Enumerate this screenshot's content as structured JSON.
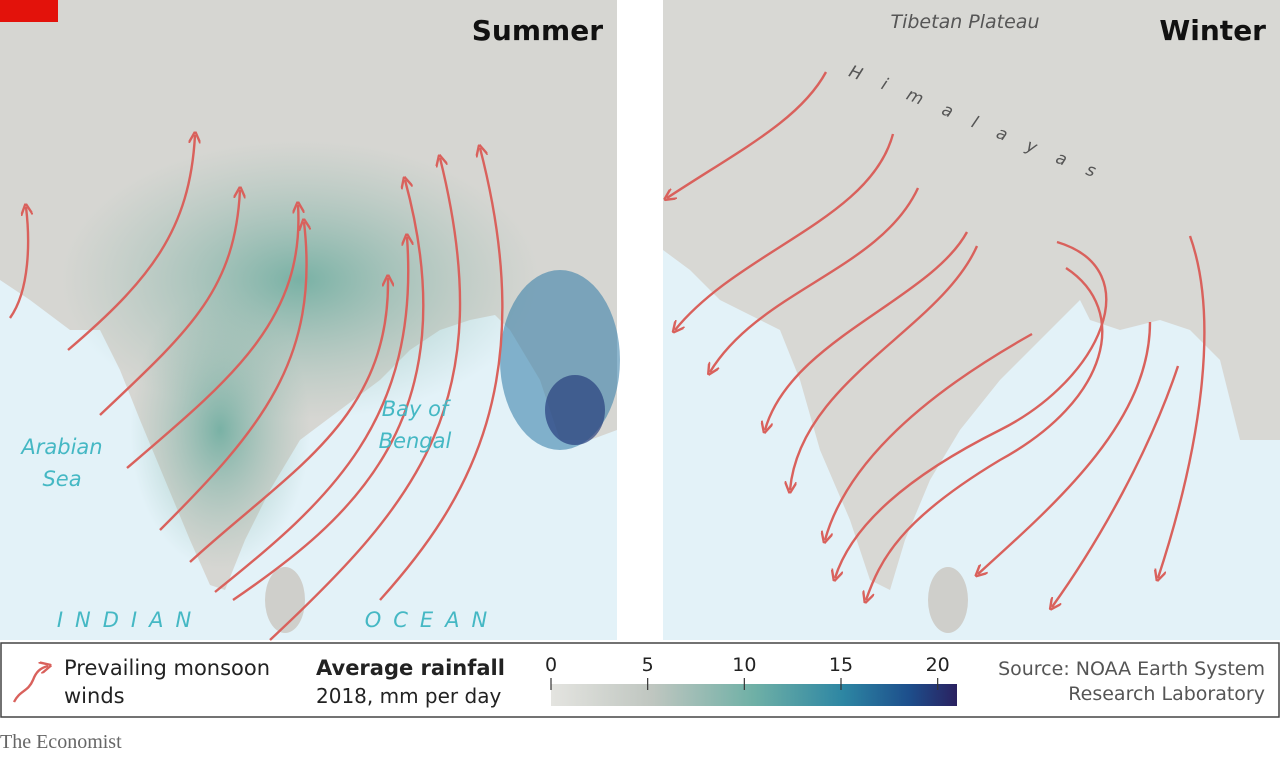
{
  "panels": [
    {
      "title": "Summer",
      "labels": {
        "sea_west": [
          "Arabian",
          "Sea"
        ],
        "bay": [
          "Bay of",
          "Bengal"
        ],
        "ocean_left": "INDIAN",
        "ocean_right": "OCEAN"
      }
    },
    {
      "title": "Winter",
      "labels": {
        "plateau": "Tibetan Plateau",
        "mountains": "Himalayas"
      }
    }
  ],
  "legend": {
    "winds": [
      "Prevailing monsoon",
      "winds"
    ],
    "rainfall_title": "Average rainfall",
    "rainfall_subtitle": "2018, mm per day",
    "colorbar": {
      "lim": [
        0,
        21
      ],
      "ticks": [
        0,
        5,
        10,
        15,
        20
      ]
    },
    "source": [
      "Source: NOAA Earth System",
      "Research Laboratory"
    ]
  },
  "footer": "The Economist"
}
